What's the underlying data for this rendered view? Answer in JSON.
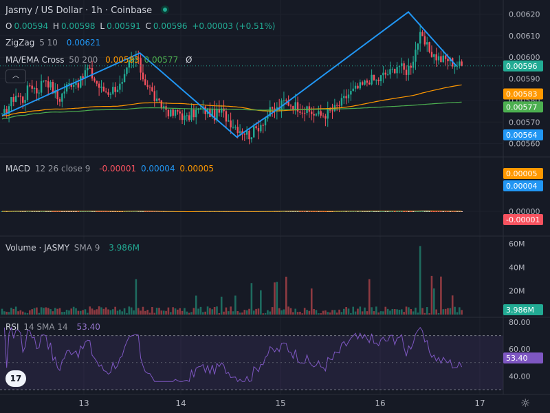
{
  "header": {
    "title": "Jasmy / US Dollar · 1h · Coinbase",
    "ohlc": {
      "o_label": "O",
      "o": "0.00594",
      "h_label": "H",
      "h": "0.00598",
      "l_label": "L",
      "l": "0.00591",
      "c_label": "C",
      "c": "0.00596",
      "change": "+0.00003 (+0.51%)"
    },
    "zigzag": {
      "label": "ZigZag",
      "params": "5 10",
      "value": "0.00621"
    },
    "ma_ema": {
      "label": "MA/EMA Cross",
      "params": "50 200",
      "ma": "0.00583",
      "ema": "0.00577",
      "hide_icon": "Ø"
    },
    "macd": {
      "label": "MACD",
      "params": "12 26 close 9",
      "hist": "-0.00001",
      "macd": "0.00004",
      "signal": "0.00005"
    },
    "volume": {
      "label": "Volume · JASMY",
      "sma_label": "SMA 9",
      "sma": "3.986M"
    },
    "rsi": {
      "label": "RSI",
      "params": "14 SMA 14",
      "value": "53.40"
    },
    "collapse_icon": "chevron-up-icon",
    "logo_text": "17"
  },
  "colors": {
    "bg": "#161a25",
    "up": "#22ab94",
    "down": "#f7525f",
    "zigzag": "#2196f3",
    "ma": "#ff9800",
    "ema": "#4caf50",
    "macd": "#2196f3",
    "signal": "#ff9800",
    "rsi": "#7e57c2"
  },
  "chart_data": [
    {
      "type": "candlestick",
      "title": "Jasmy / US Dollar · 1h · Coinbase",
      "x_ticks": [
        "13",
        "14",
        "15",
        "16",
        "17"
      ],
      "y_ticks": [
        "0.00620",
        "0.00610",
        "0.00600",
        "0.00590",
        "0.00580",
        "0.00570",
        "0.00560"
      ],
      "ylim": [
        0.00557,
        0.00624
      ],
      "anchors": [
        0.00572,
        0.00578,
        0.00583,
        0.0058,
        0.00588,
        0.00584,
        0.00591,
        0.00586,
        0.0058,
        0.00586,
        0.00589,
        0.00588,
        0.00595,
        0.0059,
        0.00585,
        0.00584,
        0.00586,
        0.00587,
        0.00597,
        0.006,
        0.0059,
        0.00585,
        0.00578,
        0.00577,
        0.00573,
        0.00575,
        0.00571,
        0.00574,
        0.00576,
        0.00575,
        0.00573,
        0.00575,
        0.00571,
        0.00568,
        0.00566,
        0.00564,
        0.00567,
        0.00571,
        0.00575,
        0.00576,
        0.0058,
        0.00578,
        0.00577,
        0.00575,
        0.00574,
        0.00573,
        0.00574,
        0.00576,
        0.00579,
        0.00583,
        0.00585,
        0.00587,
        0.0059,
        0.00589,
        0.00592,
        0.00593,
        0.00597,
        0.00593,
        0.00598,
        0.0061,
        0.00605,
        0.00601,
        0.00599,
        0.00599,
        0.00597,
        0.00596
      ],
      "zigzag": {
        "points": [
          [
            0,
            0.00573
          ],
          [
            13.5,
            0.00602
          ],
          [
            23,
            0.00563
          ],
          [
            27.3,
            0.00577
          ],
          [
            39.8,
            0.00621
          ],
          [
            44.5,
            0.00596
          ]
        ]
      },
      "ma50": {
        "start": 0.00572,
        "end": 0.00583
      },
      "ema200": {
        "start": 0.0057,
        "end": 0.00577
      },
      "last": {
        "close": "0.00596",
        "ma": "0.00583",
        "ema": "0.00577",
        "zigzag_low": "0.00564"
      }
    },
    {
      "type": "bar",
      "title": "MACD 12 26 close 9",
      "y_ticks": [
        "0.00005",
        "0.00000"
      ],
      "last": {
        "hist": "-0.00001",
        "macd": "0.00004",
        "signal": "0.00005"
      }
    },
    {
      "type": "bar",
      "title": "Volume · JASMY SMA 9",
      "y_ticks": [
        "60M",
        "40M",
        "20M"
      ],
      "ylim": [
        0,
        60
      ],
      "last": {
        "sma": "3.986M"
      }
    },
    {
      "type": "line",
      "title": "RSI 14 SMA 14",
      "y_ticks": [
        "80.00",
        "60.00",
        "40.00"
      ],
      "ylim": [
        27,
        82
      ],
      "last": {
        "rsi": "53.40"
      }
    }
  ]
}
